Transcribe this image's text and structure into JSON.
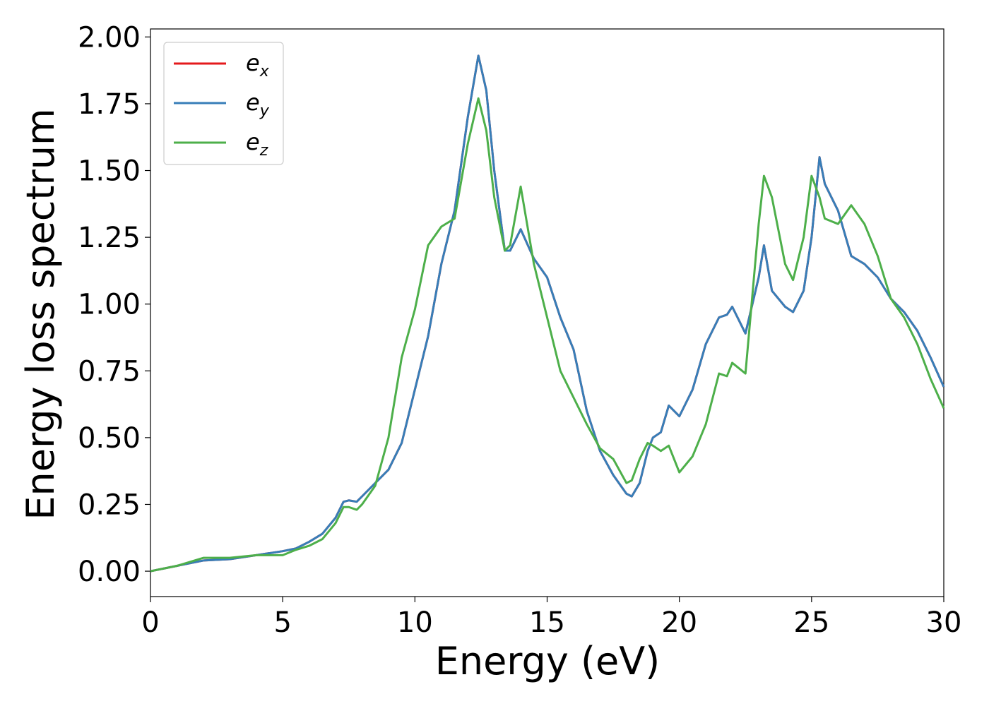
{
  "chart_data": {
    "type": "line",
    "x_label": "Energy (eV)",
    "y_label": "Energy loss spectrum",
    "xlim": [
      0,
      30
    ],
    "ylim": [
      -0.095,
      2.03
    ],
    "xticks": [
      0,
      5,
      10,
      15,
      20,
      25,
      30
    ],
    "yticks": [
      {
        "value": 0,
        "label": "0.00"
      },
      {
        "value": 0.25,
        "label": "0.25"
      },
      {
        "value": 0.5,
        "label": "0.50"
      },
      {
        "value": 0.75,
        "label": "0.75"
      },
      {
        "value": 1,
        "label": "1.00"
      },
      {
        "value": 1.25,
        "label": "1.25"
      },
      {
        "value": 1.5,
        "label": "1.50"
      },
      {
        "value": 1.75,
        "label": "1.75"
      },
      {
        "value": 2,
        "label": "2.00"
      }
    ],
    "legend": "upper left",
    "x": [
      0,
      1,
      2,
      3,
      4,
      5,
      5.5,
      6,
      6.5,
      7,
      7.3,
      7.5,
      7.8,
      8,
      8.5,
      9,
      9.5,
      10,
      10.5,
      11,
      11.5,
      12,
      12.4,
      12.7,
      13,
      13.4,
      13.6,
      14,
      14.5,
      15,
      15.5,
      16,
      16.5,
      17,
      17.5,
      18,
      18.2,
      18.5,
      18.8,
      19,
      19.3,
      19.6,
      20,
      20.5,
      21,
      21.5,
      21.8,
      22,
      22.5,
      23,
      23.2,
      23.5,
      24,
      24.3,
      24.7,
      25,
      25.3,
      25.5,
      26,
      26.5,
      27,
      27.5,
      28,
      28.5,
      29,
      29.5,
      30
    ],
    "series": [
      {
        "name": "e_x",
        "color": "#e41a1c",
        "values": [
          0,
          0.02,
          0.04,
          0.045,
          0.06,
          0.075,
          0.085,
          0.11,
          0.14,
          0.2,
          0.26,
          0.265,
          0.26,
          0.28,
          0.33,
          0.38,
          0.48,
          0.68,
          0.88,
          1.15,
          1.35,
          1.7,
          1.93,
          1.8,
          1.5,
          1.2,
          1.2,
          1.28,
          1.17,
          1.1,
          0.95,
          0.83,
          0.6,
          0.45,
          0.36,
          0.29,
          0.28,
          0.33,
          0.45,
          0.5,
          0.52,
          0.62,
          0.58,
          0.68,
          0.85,
          0.95,
          0.96,
          0.99,
          0.89,
          1.1,
          1.22,
          1.05,
          0.99,
          0.97,
          1.05,
          1.25,
          1.55,
          1.45,
          1.35,
          1.18,
          1.15,
          1.1,
          1.02,
          0.97,
          0.9,
          0.8,
          0.69
        ]
      },
      {
        "name": "e_y",
        "color": "#377eb8",
        "values": [
          0,
          0.02,
          0.04,
          0.045,
          0.06,
          0.075,
          0.085,
          0.11,
          0.14,
          0.2,
          0.26,
          0.265,
          0.26,
          0.28,
          0.33,
          0.38,
          0.48,
          0.68,
          0.88,
          1.15,
          1.35,
          1.7,
          1.93,
          1.8,
          1.5,
          1.2,
          1.2,
          1.28,
          1.17,
          1.1,
          0.95,
          0.83,
          0.6,
          0.45,
          0.36,
          0.29,
          0.28,
          0.33,
          0.45,
          0.5,
          0.52,
          0.62,
          0.58,
          0.68,
          0.85,
          0.95,
          0.96,
          0.99,
          0.89,
          1.1,
          1.22,
          1.05,
          0.99,
          0.97,
          1.05,
          1.25,
          1.55,
          1.45,
          1.35,
          1.18,
          1.15,
          1.1,
          1.02,
          0.97,
          0.9,
          0.8,
          0.69
        ]
      },
      {
        "name": "e_z",
        "color": "#4daf4a",
        "values": [
          0,
          0.02,
          0.05,
          0.05,
          0.06,
          0.06,
          0.08,
          0.095,
          0.12,
          0.18,
          0.24,
          0.24,
          0.23,
          0.25,
          0.32,
          0.5,
          0.8,
          0.98,
          1.22,
          1.29,
          1.32,
          1.6,
          1.77,
          1.65,
          1.4,
          1.2,
          1.22,
          1.44,
          1.15,
          0.95,
          0.75,
          0.65,
          0.55,
          0.46,
          0.42,
          0.33,
          0.34,
          0.42,
          0.48,
          0.47,
          0.45,
          0.47,
          0.37,
          0.43,
          0.55,
          0.74,
          0.73,
          0.78,
          0.74,
          1.3,
          1.48,
          1.4,
          1.15,
          1.09,
          1.25,
          1.48,
          1.4,
          1.32,
          1.3,
          1.37,
          1.3,
          1.18,
          1.02,
          0.95,
          0.85,
          0.72,
          0.61
        ]
      }
    ]
  }
}
